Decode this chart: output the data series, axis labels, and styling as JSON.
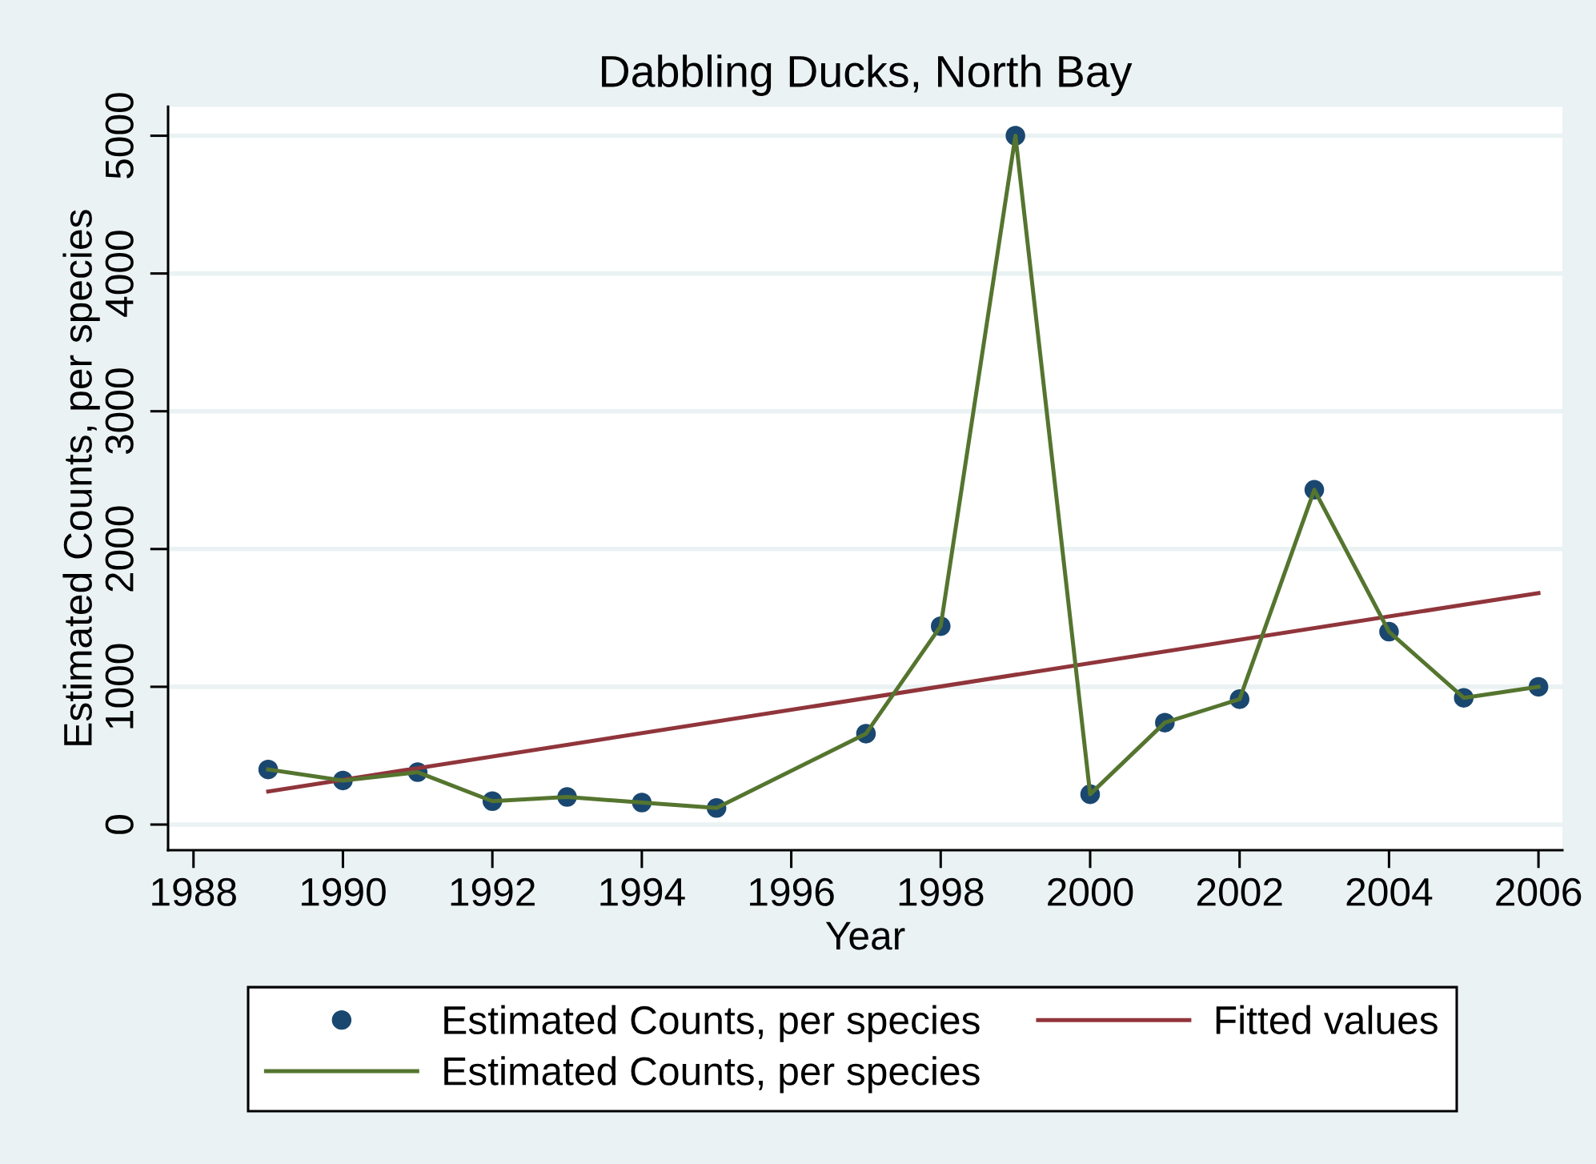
{
  "chart_data": {
    "type": "line",
    "title": "Dabbling Ducks, North Bay",
    "xlabel": "Year",
    "ylabel": "Estimated Counts, per species",
    "xlim": [
      1987.66,
      2006.32
    ],
    "xticks": [
      1988,
      1990,
      1992,
      1994,
      1996,
      1998,
      2000,
      2002,
      2004,
      2006
    ],
    "ylim": [
      -186,
      5210
    ],
    "yticks": [
      0,
      1000,
      2000,
      3000,
      4000,
      5000
    ],
    "grid": "y",
    "legend": "bottom",
    "series": [
      {
        "name": "Estimated Counts, per species",
        "type": "scatter",
        "marker": "circle",
        "color": "#1a476f",
        "x": [
          1989,
          1990,
          1991,
          1992,
          1993,
          1994,
          1995,
          1997,
          1998,
          1999,
          2000,
          2001,
          2002,
          2003,
          2004,
          2005,
          2006
        ],
        "values": [
          400,
          320,
          380,
          170,
          200,
          160,
          120,
          660,
          1440,
          5000,
          220,
          740,
          910,
          2430,
          1400,
          920,
          1000
        ]
      },
      {
        "name": "Fitted values",
        "color": "#90353b",
        "x": [
          1989,
          2006
        ],
        "values": [
          240,
          1680
        ]
      },
      {
        "name": "Estimated Counts, per species",
        "color": "#55752f",
        "x": [
          1989,
          1990,
          1991,
          1992,
          1993,
          1994,
          1995,
          1997,
          1998,
          1999,
          2000,
          2001,
          2002,
          2003,
          2004,
          2005,
          2006
        ],
        "values": [
          400,
          320,
          380,
          170,
          200,
          160,
          120,
          660,
          1440,
          5000,
          220,
          740,
          910,
          2430,
          1400,
          920,
          1000
        ]
      }
    ]
  }
}
